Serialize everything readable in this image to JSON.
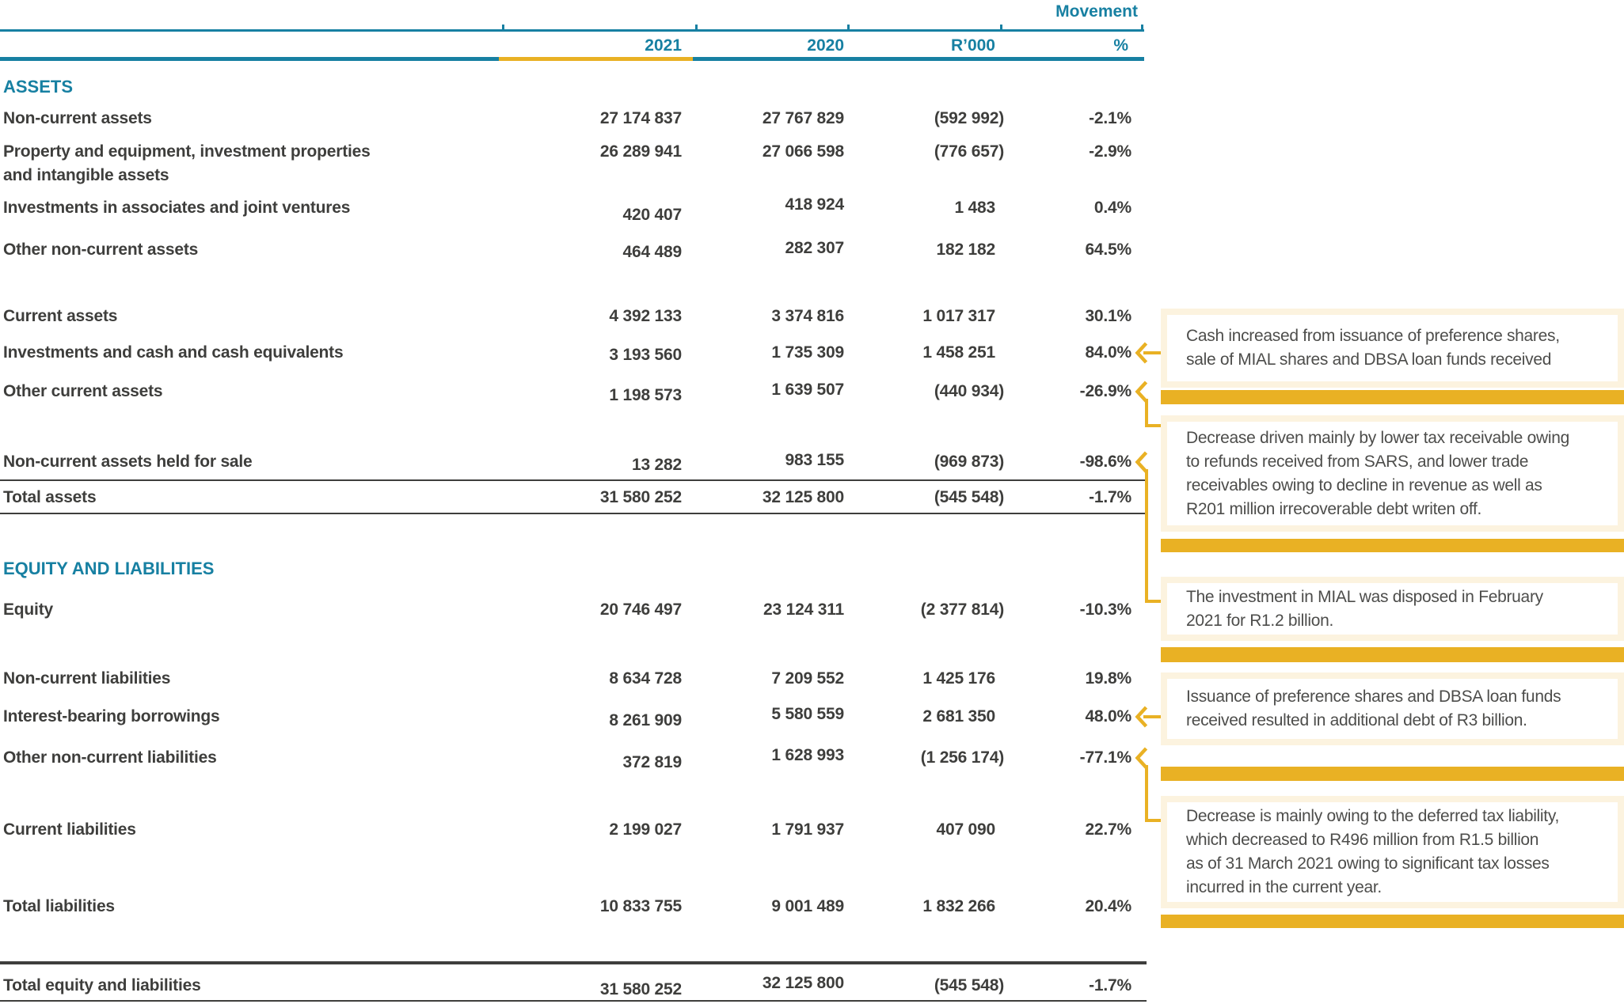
{
  "header": {
    "movement": "Movement",
    "columns": {
      "y2021": "2021",
      "y2020": "2020",
      "r000": "R’000",
      "pct": "%"
    }
  },
  "colors": {
    "teal": "#1780A2",
    "gold": "#E9B124",
    "cream": "#FCF3DF",
    "ink": "#3E3E3C",
    "callout_ink": "#4D4D4B"
  },
  "table": {
    "rows": [
      {
        "id": "assets-heading",
        "kind": "heading",
        "label": "ASSETS"
      },
      {
        "id": "non-current-assets",
        "kind": "data",
        "label": "Non-current assets",
        "y2021": "27 174 837",
        "y2020": "27 767 829",
        "r000": "(592 992)",
        "pct": "-2.1%"
      },
      {
        "id": "property-equipment",
        "kind": "data",
        "label": "Property and equipment, investment properties",
        "label2": "and intangible assets",
        "y2021": "26 289 941",
        "y2020": "27 066 598",
        "r000": "(776 657)",
        "pct": "-2.9%"
      },
      {
        "id": "investments-associates",
        "kind": "data",
        "label": "Investments in associates and joint ventures",
        "y2021": "420 407",
        "y2020": "418 924",
        "r000": "1 483",
        "pct": "0.4%"
      },
      {
        "id": "other-non-current-assets",
        "kind": "data",
        "label": "Other non-current assets",
        "y2021": "464 489",
        "y2020": "282 307",
        "r000": "182 182",
        "pct": "64.5%"
      },
      {
        "id": "current-assets",
        "kind": "data",
        "label": "Current assets",
        "y2021": "4 392 133",
        "y2020": "3 374 816",
        "r000": "1 017 317",
        "pct": "30.1%"
      },
      {
        "id": "investments-and-cash",
        "kind": "data",
        "label": "Investments and cash and cash equivalents",
        "y2021": "3 193 560",
        "y2020": "1 735 309",
        "r000": "1 458 251",
        "pct": "84.0%"
      },
      {
        "id": "other-current-assets",
        "kind": "data",
        "label": "Other current assets",
        "y2021": "1 198 573",
        "y2020": "1 639 507",
        "r000": "(440 934)",
        "pct": "-26.9%"
      },
      {
        "id": "non-current-assets-held-for-sale",
        "kind": "data",
        "label": "Non-current assets held for sale",
        "y2021": "13 282",
        "y2020": "983 155",
        "r000": "(969 873)",
        "pct": "-98.6%"
      },
      {
        "id": "total-assets",
        "kind": "total",
        "label": "Total assets",
        "y2021": "31 580 252",
        "y2020": "32 125 800",
        "r000": "(545 548)",
        "pct": "-1.7%"
      },
      {
        "id": "equity-liabilities-heading",
        "kind": "heading",
        "label": "EQUITY AND LIABILITIES"
      },
      {
        "id": "equity",
        "kind": "data",
        "label": "Equity",
        "y2021": "20 746 497",
        "y2020": "23 124 311",
        "r000": "(2 377 814)",
        "pct": "-10.3%"
      },
      {
        "id": "non-current-liabilities",
        "kind": "data",
        "label": "Non-current liabilities",
        "y2021": "8 634 728",
        "y2020": "7 209 552",
        "r000": "1 425 176",
        "pct": "19.8%"
      },
      {
        "id": "interest-bearing-borrowings",
        "kind": "data",
        "label": "Interest-bearing borrowings",
        "y2021": "8 261 909",
        "y2020": "5 580 559",
        "r000": "2 681 350",
        "pct": "48.0%"
      },
      {
        "id": "other-non-current-liabilities",
        "kind": "data",
        "label": "Other non-current liabilities",
        "y2021": "372 819",
        "y2020": "1 628 993",
        "r000": "(1 256 174)",
        "pct": "-77.1%"
      },
      {
        "id": "current-liabilities",
        "kind": "data",
        "label": "Current liabilities",
        "y2021": "2 199 027",
        "y2020": "1 791 937",
        "r000": "407 090",
        "pct": "22.7%"
      },
      {
        "id": "total-liabilities",
        "kind": "data",
        "label": "Total liabilities",
        "y2021": "10 833 755",
        "y2020": "9 001 489",
        "r000": "1 832 266",
        "pct": "20.4%"
      },
      {
        "id": "total-equity-and-liabilities",
        "kind": "total",
        "label": "Total equity and liabilities",
        "y2021": "31 580 252",
        "y2020": "32 125 800",
        "r000": "(545 548)",
        "pct": "-1.7%"
      }
    ]
  },
  "callouts": [
    {
      "id": "cash-increase",
      "lines": [
        "Cash increased from issuance of preference shares,",
        "sale of MIAL shares and DBSA loan funds received"
      ]
    },
    {
      "id": "other-current-assets-decrease",
      "lines": [
        "Decrease driven mainly by lower tax receivable owing",
        "to refunds received from SARS, and lower trade",
        "receivables owing to decline in revenue as well as",
        "R201 million irrecoverable debt writen off."
      ]
    },
    {
      "id": "mial-disposal",
      "lines": [
        "The investment in MIAL was disposed in February",
        "2021 for R1.2 billion."
      ]
    },
    {
      "id": "additional-debt",
      "lines": [
        "Issuance of preference shares and DBSA loan funds",
        "received resulted in additional debt of R3 billion."
      ]
    },
    {
      "id": "deferred-tax-decrease",
      "lines": [
        "Decrease is mainly owing to the deferred tax liability,",
        "which decreased to R496 million from R1.5 billion",
        "as of 31 March 2021 owing to significant tax losses",
        "incurred in the current year."
      ]
    }
  ]
}
